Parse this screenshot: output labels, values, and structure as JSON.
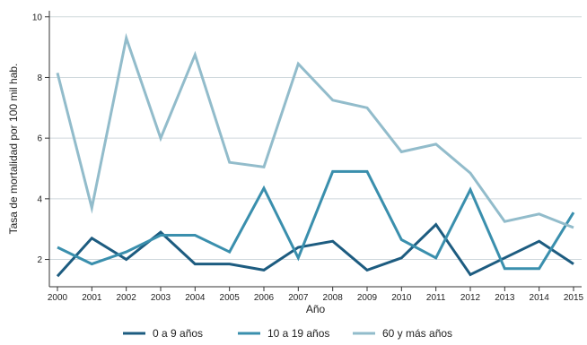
{
  "chart_data": {
    "type": "line",
    "xlabel": "Año",
    "ylabel": "Tasa de mortalidad por 100 mil hab.",
    "x": [
      2000,
      2001,
      2002,
      2003,
      2004,
      2005,
      2006,
      2007,
      2008,
      2009,
      2010,
      2011,
      2012,
      2013,
      2014,
      2015
    ],
    "x_tick_labels": [
      "2000",
      "2001",
      "2002",
      "2003",
      "2004",
      "2005",
      "2006",
      "2007",
      "2008",
      "2009",
      "2010",
      "2011",
      "2012",
      "2013",
      "2014",
      "2015"
    ],
    "ylim": [
      1.1,
      10.2
    ],
    "y_ticks": [
      2,
      4,
      6,
      8,
      10
    ],
    "y_tick_labels": [
      "2",
      "4",
      "6",
      "8",
      "10"
    ],
    "grid": "horizontal",
    "legend_position": "bottom",
    "series": [
      {
        "name": "0 a 9 años",
        "color": "#1d5c80",
        "values": [
          1.45,
          2.7,
          2.0,
          2.9,
          1.85,
          1.85,
          1.65,
          2.4,
          2.6,
          1.65,
          2.05,
          3.15,
          1.5,
          2.05,
          2.6,
          1.85
        ]
      },
      {
        "name": "10 a 19 años",
        "color": "#3a8fad",
        "values": [
          2.4,
          1.85,
          2.25,
          2.8,
          2.8,
          2.25,
          4.35,
          2.05,
          4.9,
          4.9,
          2.65,
          2.05,
          4.3,
          1.7,
          1.7,
          3.55
        ]
      },
      {
        "name": "60 y más años",
        "color": "#92bccb",
        "values": [
          8.15,
          3.7,
          9.3,
          6.0,
          8.75,
          5.2,
          5.05,
          8.45,
          7.25,
          7.0,
          5.55,
          5.8,
          4.85,
          3.25,
          3.5,
          3.05
        ]
      }
    ]
  }
}
